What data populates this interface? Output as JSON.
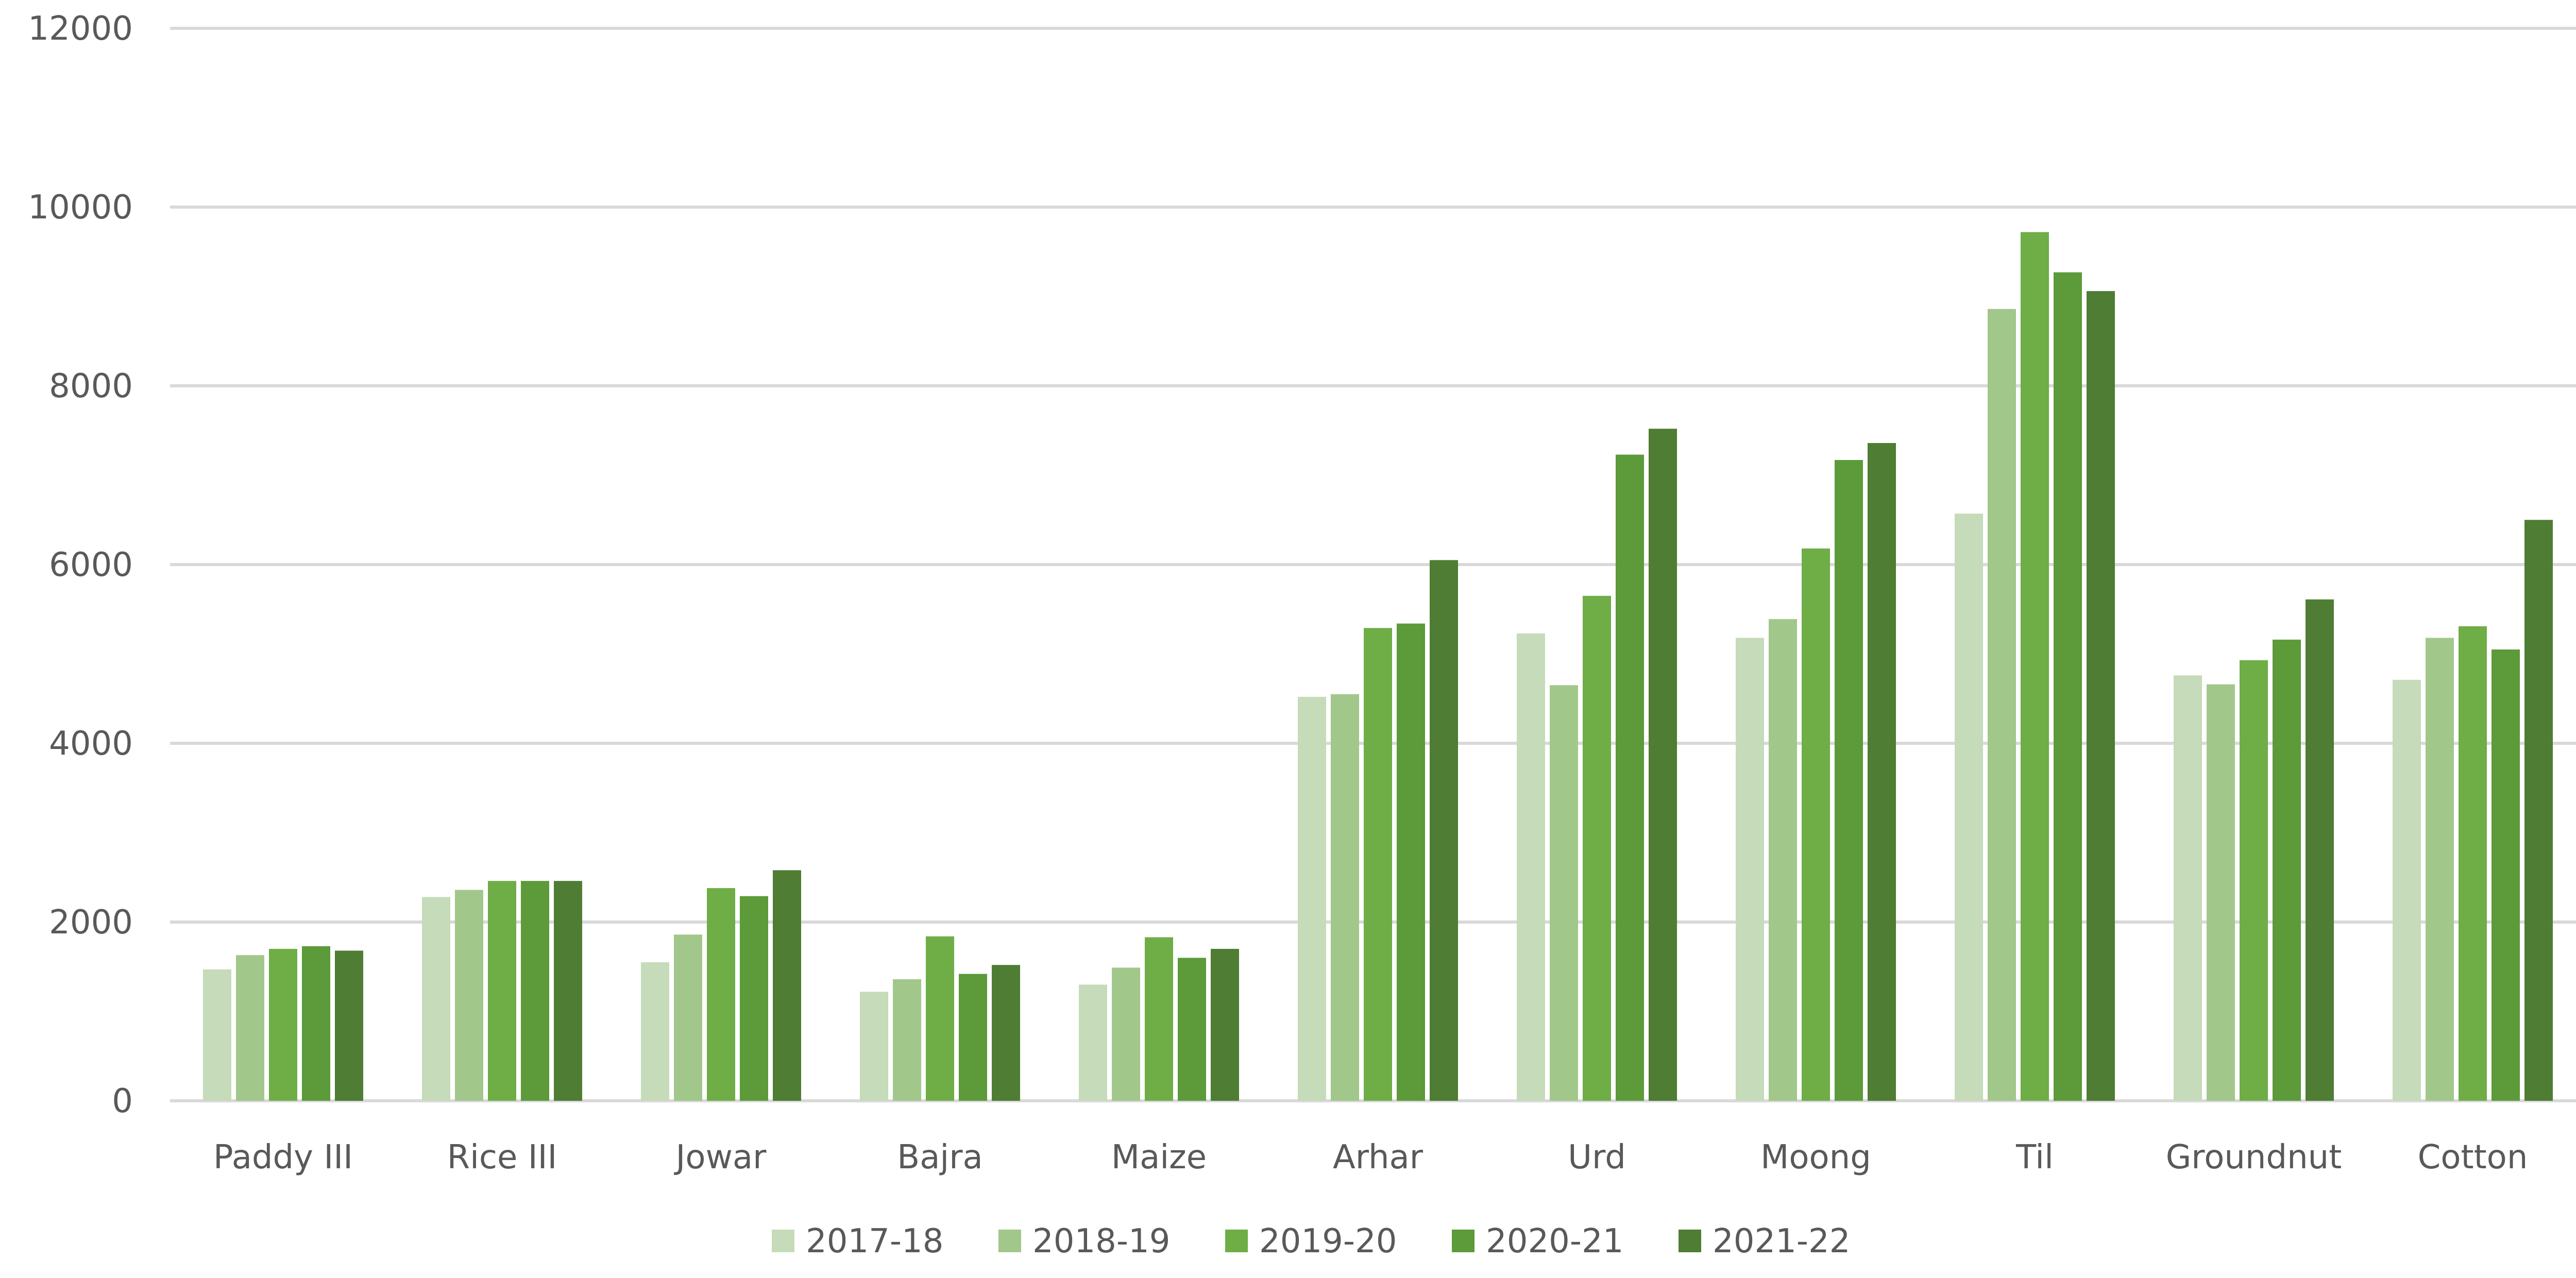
{
  "chart_data": {
    "type": "bar",
    "title": "",
    "xlabel": "",
    "ylabel": "",
    "ylim": [
      0,
      12000
    ],
    "yticks": [
      0,
      2000,
      4000,
      6000,
      8000,
      10000,
      12000
    ],
    "ytick_labels": [
      "0",
      "2000",
      "4000",
      "6000",
      "8000",
      "10000",
      "12000"
    ],
    "grid": true,
    "legend_position": "bottom",
    "categories": [
      "Paddy III",
      "Rice III",
      "Jowar",
      "Bajra",
      "Maize",
      "Arhar",
      "Urd",
      "Moong",
      "Til",
      "Groundnut",
      "Cotton"
    ],
    "series": [
      {
        "name": "2017-18",
        "color": "#c5dbb9",
        "values": [
          1470,
          2280,
          1550,
          1220,
          1300,
          4520,
          5230,
          5180,
          6570,
          4760,
          4710
        ]
      },
      {
        "name": "2018-19",
        "color": "#a2c78b",
        "values": [
          1630,
          2360,
          1860,
          1360,
          1490,
          4550,
          4650,
          5390,
          8860,
          4660,
          5180
        ]
      },
      {
        "name": "2019-20",
        "color": "#6fad47",
        "values": [
          1700,
          2460,
          2380,
          1840,
          1830,
          5290,
          5650,
          6180,
          9720,
          4930,
          5310
        ]
      },
      {
        "name": "2020-21",
        "color": "#5c9a3a",
        "values": [
          1730,
          2460,
          2290,
          1420,
          1600,
          5340,
          7230,
          7170,
          9270,
          5160,
          5050
        ]
      },
      {
        "name": "2021-22",
        "color": "#4f7d33",
        "values": [
          1680,
          2460,
          2580,
          1520,
          1700,
          6050,
          7520,
          7360,
          9060,
          5610,
          6500
        ]
      }
    ]
  },
  "colors": {
    "gridline": "#d9d9d9",
    "axis_text": "#595959"
  }
}
